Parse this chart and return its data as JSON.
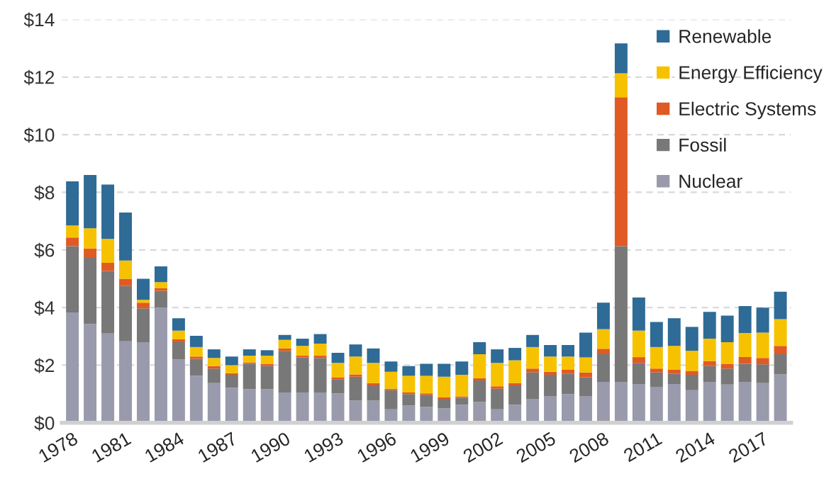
{
  "chart_data": {
    "type": "bar",
    "stacked": true,
    "categories": [
      "1978",
      null,
      null,
      "1981",
      null,
      null,
      "1984",
      null,
      null,
      "1987",
      null,
      null,
      "1990",
      null,
      null,
      "1993",
      null,
      null,
      "1996",
      null,
      null,
      "1999",
      null,
      null,
      "2002",
      null,
      null,
      "2005",
      null,
      null,
      "2008",
      null,
      null,
      "2011",
      null,
      null,
      "2014",
      null,
      null,
      "2017",
      null
    ],
    "series": [
      {
        "name": "Nuclear",
        "color": "#9a9aad",
        "values": [
          3.83,
          3.43,
          3.1,
          2.83,
          2.8,
          4.0,
          2.2,
          1.63,
          1.38,
          1.22,
          1.17,
          1.17,
          1.05,
          1.05,
          1.05,
          1.02,
          0.77,
          0.77,
          0.47,
          0.6,
          0.55,
          0.5,
          0.63,
          0.72,
          0.47,
          0.63,
          0.83,
          0.93,
          1.0,
          0.93,
          1.42,
          1.42,
          1.35,
          1.25,
          1.35,
          1.13,
          1.42,
          1.33,
          1.42,
          1.38,
          1.68
        ]
      },
      {
        "name": "Fossil",
        "color": "#787878",
        "values": [
          2.3,
          2.32,
          2.17,
          1.92,
          1.17,
          0.58,
          0.6,
          0.59,
          0.5,
          0.45,
          0.88,
          0.8,
          1.45,
          1.22,
          1.2,
          0.48,
          0.83,
          0.53,
          0.66,
          0.4,
          0.42,
          0.33,
          0.24,
          0.75,
          0.71,
          0.67,
          0.92,
          0.74,
          0.7,
          0.65,
          0.96,
          4.71,
          0.73,
          0.5,
          0.35,
          0.54,
          0.55,
          0.55,
          0.63,
          0.65,
          0.7
        ]
      },
      {
        "name": "Electric Systems",
        "color": "#e05a24",
        "values": [
          0.3,
          0.3,
          0.28,
          0.25,
          0.2,
          0.09,
          0.1,
          0.08,
          0.09,
          0.05,
          0.05,
          0.08,
          0.08,
          0.06,
          0.08,
          0.08,
          0.08,
          0.08,
          0.05,
          0.05,
          0.05,
          0.05,
          0.05,
          0.08,
          0.09,
          0.08,
          0.13,
          0.1,
          0.15,
          0.17,
          0.19,
          5.17,
          0.2,
          0.13,
          0.15,
          0.13,
          0.18,
          0.17,
          0.23,
          0.22,
          0.29
        ]
      },
      {
        "name": "Energy Efficiency",
        "color": "#f6c200",
        "values": [
          0.42,
          0.7,
          0.83,
          0.63,
          0.1,
          0.21,
          0.3,
          0.33,
          0.28,
          0.28,
          0.23,
          0.28,
          0.3,
          0.34,
          0.42,
          0.5,
          0.62,
          0.7,
          0.59,
          0.58,
          0.61,
          0.72,
          0.75,
          0.83,
          0.81,
          0.79,
          0.75,
          0.53,
          0.45,
          0.52,
          0.68,
          0.83,
          0.92,
          0.75,
          0.82,
          0.7,
          0.77,
          0.75,
          0.84,
          0.88,
          0.93
        ]
      },
      {
        "name": "Renewable",
        "color": "#2e6b96",
        "values": [
          1.53,
          1.85,
          1.89,
          1.67,
          0.73,
          0.55,
          0.43,
          0.39,
          0.3,
          0.3,
          0.22,
          0.19,
          0.17,
          0.25,
          0.33,
          0.35,
          0.42,
          0.5,
          0.36,
          0.34,
          0.42,
          0.45,
          0.46,
          0.42,
          0.47,
          0.43,
          0.42,
          0.4,
          0.4,
          0.86,
          0.92,
          1.04,
          1.15,
          0.87,
          0.96,
          0.83,
          0.93,
          0.92,
          0.93,
          0.87,
          0.95
        ]
      }
    ],
    "ylim": [
      0,
      14
    ],
    "yticks": [
      {
        "value": 0,
        "label": "$0"
      },
      {
        "value": 2,
        "label": "$2"
      },
      {
        "value": 4,
        "label": "$4"
      },
      {
        "value": 6,
        "label": "$6"
      },
      {
        "value": 8,
        "label": "$8"
      },
      {
        "value": 10,
        "label": "$10"
      },
      {
        "value": 12,
        "label": "$12"
      },
      {
        "value": 14,
        "label": "$14"
      }
    ],
    "grid": "y",
    "legend": "top right"
  }
}
